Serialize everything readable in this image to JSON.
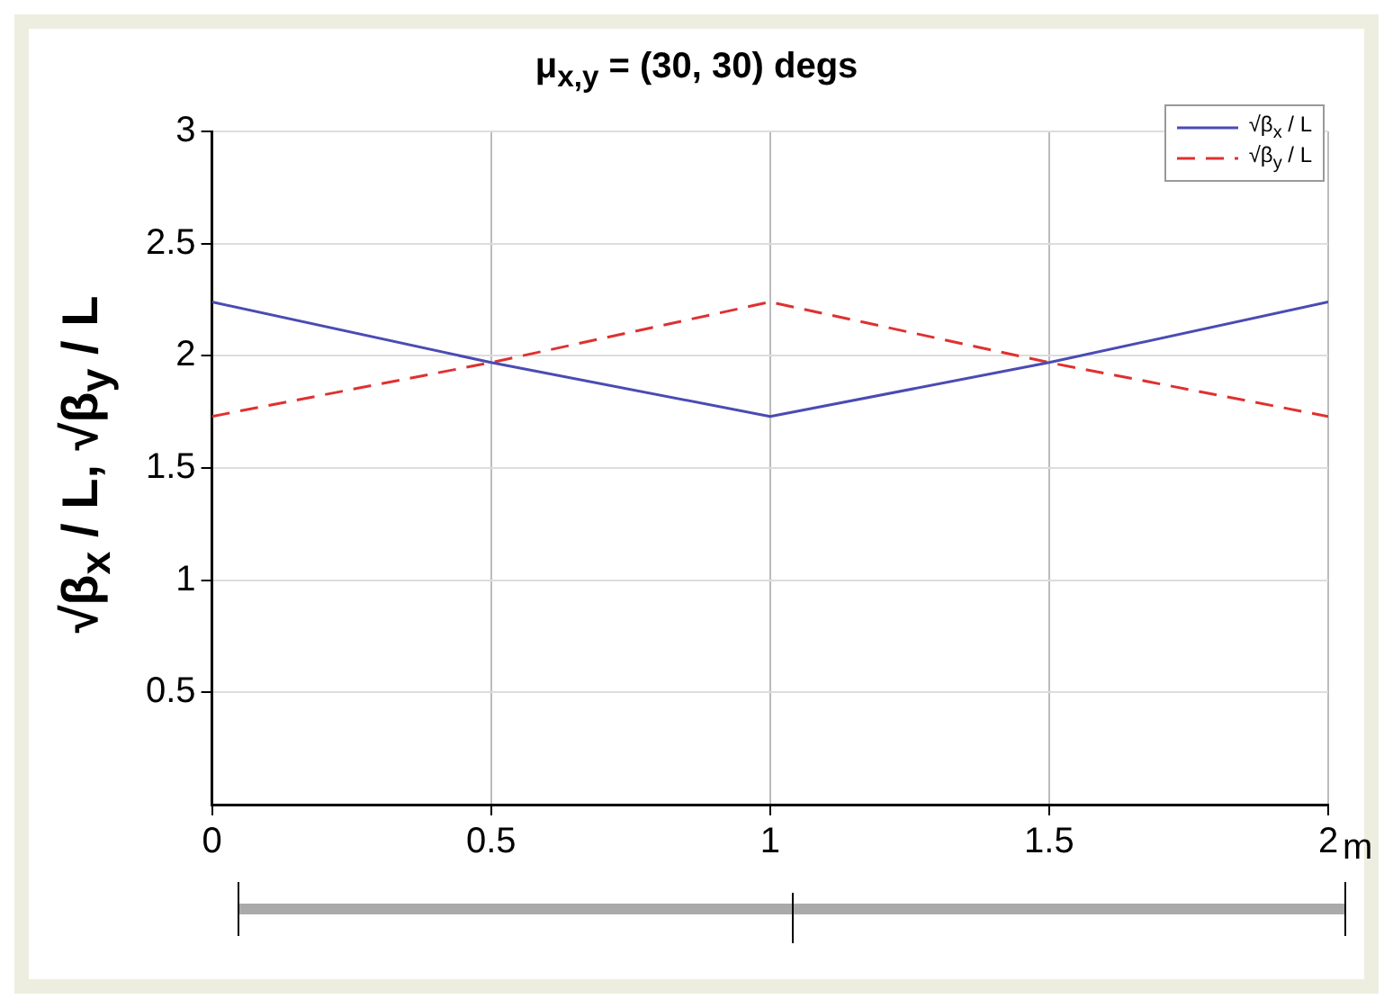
{
  "chart_data": {
    "type": "line",
    "title": "μ$_{x,y}$ = (30, 30) degs",
    "ylabel": "√β$_{x}$ / L, √β$_{y}$ / L",
    "xlabel": "m",
    "x": [
      0,
      0.5,
      1,
      1.5,
      2
    ],
    "series": [
      {
        "name": "√β$_{x}$ / L",
        "color": "#4b4bb4",
        "values": [
          2.24,
          1.97,
          1.73,
          1.97,
          2.24
        ],
        "line_style": "solid"
      },
      {
        "name": "√β$_{y}$ / L",
        "color": "#e03030",
        "values": [
          1.73,
          1.97,
          2.24,
          1.97,
          1.73
        ],
        "line_style": "dashed"
      }
    ],
    "xlim": [
      0,
      2
    ],
    "xticks": [
      0,
      0.5,
      1,
      1.5,
      2
    ],
    "ylim": [
      0,
      3
    ],
    "yticks": [
      0.5,
      1,
      1.5,
      2,
      2.5,
      3
    ],
    "grid": true,
    "legend": "top right",
    "marker": "none"
  }
}
